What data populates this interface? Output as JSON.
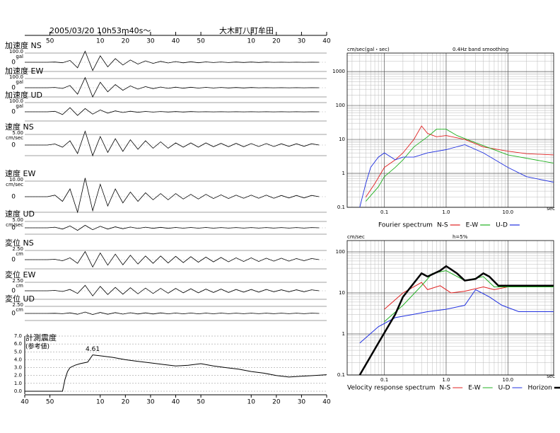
{
  "header": {
    "datetime": "2005/03/20  10h53m40s～",
    "station": "大木町八町牟田"
  },
  "chart_data": [
    {
      "type": "waveform",
      "xlim": [
        0,
        120
      ],
      "xticks": [
        {
          "value": 10,
          "label": "50"
        },
        {
          "value": 30,
          "label": "10"
        },
        {
          "value": 40,
          "label": "20"
        },
        {
          "value": 50,
          "label": "30"
        },
        {
          "value": 60,
          "label": "40"
        },
        {
          "value": 70,
          "label": "50"
        },
        {
          "value": 90,
          "label": "10"
        },
        {
          "value": 100,
          "label": "20"
        },
        {
          "value": 110,
          "label": "30"
        },
        {
          "value": 120,
          "label": "40"
        }
      ],
      "x": [
        0,
        3,
        6,
        9,
        12,
        15,
        18,
        21,
        24,
        27,
        30,
        33,
        36,
        39,
        42,
        45,
        48,
        51,
        54,
        57,
        60,
        63,
        66,
        69,
        72,
        75,
        78,
        81,
        84,
        87,
        90,
        93,
        96,
        99,
        102,
        105,
        108,
        111,
        114,
        117
      ],
      "series": [
        {
          "name": "加速度 NS",
          "unit": "gal",
          "color": "#000",
          "yticks": [
            {
              "value": 100,
              "label": "100.0"
            },
            0
          ],
          "values": [
            0,
            0,
            0,
            0,
            2,
            -5,
            20,
            -60,
            120,
            -90,
            70,
            -50,
            40,
            -30,
            25,
            -20,
            15,
            -12,
            10,
            -8,
            8,
            -6,
            5,
            -5,
            4,
            -3,
            3,
            -3,
            2,
            -2,
            2,
            -2,
            2,
            -1,
            1,
            -1,
            1,
            -1,
            1,
            0
          ]
        },
        {
          "name": "加速度 EW",
          "unit": "gal",
          "color": "#000",
          "yticks": [
            {
              "value": 100,
              "label": "100.0"
            },
            0
          ],
          "values": [
            0,
            0,
            0,
            0,
            3,
            -8,
            25,
            -70,
            110,
            -100,
            60,
            -45,
            35,
            -28,
            20,
            -15,
            12,
            -10,
            8,
            -7,
            6,
            -5,
            5,
            -4,
            4,
            -3,
            3,
            -2,
            2,
            -2,
            2,
            -1,
            1,
            -1,
            1,
            -1,
            1,
            -1,
            1,
            0
          ]
        },
        {
          "name": "加速度 UD",
          "unit": "gal",
          "color": "#000",
          "yticks": [
            {
              "value": 100,
              "label": "100.0"
            },
            0
          ],
          "values": [
            0,
            0,
            0,
            0,
            5,
            -30,
            45,
            -40,
            35,
            -25,
            20,
            -15,
            10,
            -8,
            6,
            -5,
            4,
            -3,
            3,
            -2,
            2,
            -2,
            2,
            -1,
            1,
            -1,
            1,
            -1,
            1,
            -1,
            1,
            -1,
            1,
            -1,
            1,
            -1,
            1,
            -1,
            1,
            0
          ]
        },
        {
          "name": "速度 NS",
          "unit": "cm/sec",
          "color": "#000",
          "yticks": [
            {
              "value": 5,
              "label": "5.00"
            },
            0
          ],
          "values": [
            0,
            0,
            0,
            0,
            0.5,
            -1,
            2,
            -4,
            6.5,
            -5,
            4,
            -3.5,
            3,
            -3,
            2.5,
            -2,
            2,
            -1.5,
            1.5,
            -1.5,
            1,
            -1,
            1,
            -1,
            1,
            -0.8,
            0.8,
            -0.8,
            0.8,
            -0.8,
            0.7,
            -0.7,
            0.7,
            -0.7,
            0.6,
            -0.6,
            0.6,
            -0.6,
            0.6,
            0
          ]
        },
        {
          "name": "速度 EW",
          "unit": "cm/sec",
          "color": "#000",
          "yticks": [
            {
              "value": 10,
              "label": "10.00"
            },
            0
          ],
          "values": [
            0,
            0,
            0,
            0,
            1,
            -3,
            5,
            -10,
            12,
            -9,
            8,
            -6,
            5,
            -4,
            3,
            -3,
            2.5,
            -2,
            2,
            -2,
            2,
            -1.5,
            1.5,
            -1.5,
            1.5,
            -1.2,
            1.2,
            -1.2,
            1,
            -1,
            1,
            -1,
            1,
            -1,
            0.8,
            -0.8,
            0.8,
            -0.8,
            0.8,
            0
          ]
        },
        {
          "name": "速度 UD",
          "unit": "cm/sec",
          "color": "#000",
          "yticks": [
            {
              "value": 5,
              "label": "5.00"
            },
            0
          ],
          "values": [
            0,
            0,
            0,
            0,
            0.5,
            -1,
            1.5,
            -2,
            2,
            -1.5,
            1.2,
            -1,
            0.8,
            -0.7,
            0.6,
            -0.5,
            0.5,
            -0.4,
            0.4,
            -0.4,
            0.3,
            -0.3,
            0.3,
            -0.3,
            0.3,
            -0.3,
            0.2,
            -0.2,
            0.2,
            -0.2,
            0.2,
            -0.2,
            0.2,
            -0.2,
            0.2,
            -0.2,
            0.2,
            -0.2,
            0.2,
            0
          ]
        },
        {
          "name": "変位 NS",
          "unit": "cm",
          "color": "#000",
          "yticks": [
            {
              "value": 2.5,
              "label": "2.50"
            },
            0
          ],
          "values": [
            0,
            0,
            0,
            0,
            0.1,
            -0.3,
            0.5,
            -1,
            2.2,
            -2,
            1.8,
            -1.5,
            1.5,
            -1.4,
            1.2,
            -1.2,
            1,
            -1,
            1,
            -0.9,
            0.9,
            -0.8,
            0.8,
            -0.7,
            0.7,
            -0.6,
            0.6,
            -0.6,
            0.5,
            -0.5,
            0.5,
            -0.5,
            0.4,
            -0.4,
            0.4,
            -0.4,
            0.3,
            -0.3,
            0.3,
            0
          ]
        },
        {
          "name": "変位 EW",
          "unit": "cm",
          "color": "#000",
          "yticks": [
            {
              "value": 2.5,
              "label": "2.50"
            },
            0
          ],
          "values": [
            0,
            0,
            0,
            0,
            0.1,
            -0.2,
            0.4,
            -0.8,
            1.6,
            -1.5,
            1.3,
            -1.1,
            1,
            -1,
            0.9,
            -0.9,
            0.8,
            -0.8,
            0.7,
            -0.7,
            0.7,
            -0.6,
            0.6,
            -0.6,
            0.5,
            -0.5,
            0.5,
            -0.5,
            0.4,
            -0.4,
            0.4,
            -0.4,
            0.4,
            -0.3,
            0.3,
            -0.3,
            0.3,
            -0.3,
            0.3,
            0
          ]
        },
        {
          "name": "変位 UD",
          "unit": "cm",
          "color": "#000",
          "yticks": [
            {
              "value": 2.5,
              "label": "2.50"
            },
            0
          ],
          "values": [
            0,
            0,
            0,
            0,
            0.05,
            -0.1,
            0.2,
            -0.3,
            0.5,
            -0.4,
            0.35,
            -0.3,
            0.3,
            -0.25,
            0.25,
            -0.2,
            0.2,
            -0.2,
            0.2,
            -0.15,
            0.15,
            -0.15,
            0.15,
            -0.15,
            0.12,
            -0.12,
            0.12,
            -0.1,
            0.1,
            -0.1,
            0.1,
            -0.1,
            0.1,
            -0.1,
            0.1,
            -0.1,
            0.1,
            -0.1,
            0.1,
            0
          ]
        }
      ]
    },
    {
      "type": "intensity",
      "title": "計測震度",
      "subtitle": "(参考値)",
      "xlim": [
        0,
        120
      ],
      "xticks": [
        {
          "value": 0,
          "label": "40"
        },
        {
          "value": 10,
          "label": "50"
        },
        {
          "value": 30,
          "label": "10"
        },
        {
          "value": 40,
          "label": "20"
        },
        {
          "value": 50,
          "label": "30"
        },
        {
          "value": 60,
          "label": "40"
        },
        {
          "value": 70,
          "label": "50"
        },
        {
          "value": 90,
          "label": "10"
        },
        {
          "value": 100,
          "label": "20"
        },
        {
          "value": 110,
          "label": "30"
        },
        {
          "value": 120,
          "label": "40"
        }
      ],
      "ylim": [
        0,
        7
      ],
      "yticks": [
        {
          "value": 0,
          "label": "0.0"
        },
        {
          "value": 1,
          "label": "1.0"
        },
        {
          "value": 2,
          "label": "2.0"
        },
        {
          "value": 3,
          "label": "3.0"
        },
        {
          "value": 4,
          "label": "4.0"
        },
        {
          "value": 5,
          "label": "5.0"
        },
        {
          "value": 6,
          "label": "6.0"
        },
        {
          "value": 7,
          "label": "7.0"
        }
      ],
      "grid": true,
      "color": "#000",
      "x": [
        0,
        15,
        16,
        17,
        18,
        20,
        22,
        25,
        27,
        30,
        35,
        40,
        45,
        50,
        55,
        60,
        65,
        70,
        75,
        80,
        85,
        90,
        95,
        100,
        105,
        110,
        115,
        120
      ],
      "values": [
        0,
        0,
        1.5,
        2.5,
        3.0,
        3.3,
        3.5,
        3.7,
        4.61,
        4.5,
        4.3,
        4.0,
        3.8,
        3.6,
        3.4,
        3.2,
        3.3,
        3.5,
        3.2,
        3.0,
        2.8,
        2.5,
        2.3,
        2.0,
        1.8,
        1.9,
        2.0,
        2.1
      ],
      "annotation": {
        "label": "4.61",
        "x": 27,
        "value": 4.61
      }
    },
    {
      "type": "spectrum",
      "title": "Fourier spectrum",
      "y_label": "cm/sec(gal・sec)",
      "subtitle": "0.4Hz band smoothing",
      "x_label": "sec",
      "log_x": true,
      "log_y": true,
      "grid": true,
      "xlim": [
        0.025,
        55
      ],
      "xticks": [
        0.1,
        {
          "value": 1,
          "label": "1.0"
        },
        {
          "value": 10,
          "label": "10.0"
        }
      ],
      "ylim": [
        0.1,
        3500
      ],
      "yticks": [
        0.1,
        1,
        10,
        100,
        1000
      ],
      "series": [
        {
          "name": "N-S",
          "color": "#e02020",
          "x": [
            0.05,
            0.07,
            0.1,
            0.15,
            0.2,
            0.3,
            0.4,
            0.5,
            0.7,
            1,
            2,
            4,
            10,
            20,
            55
          ],
          "values": [
            0.2,
            0.5,
            1.5,
            2.5,
            4,
            10,
            25,
            15,
            12,
            13,
            10,
            6,
            4.5,
            3.8,
            3.5
          ]
        },
        {
          "name": "E-W",
          "color": "#20b020",
          "x": [
            0.05,
            0.08,
            0.1,
            0.15,
            0.2,
            0.3,
            0.5,
            0.7,
            1,
            1.5,
            3,
            10,
            55
          ],
          "values": [
            0.15,
            0.4,
            0.8,
            1.5,
            2.5,
            6,
            12,
            20,
            20,
            13,
            8,
            3.5,
            2
          ]
        },
        {
          "name": "U-D",
          "color": "#2030e0",
          "x": [
            0.04,
            0.05,
            0.06,
            0.08,
            0.1,
            0.15,
            0.2,
            0.3,
            0.5,
            1,
            2,
            4,
            10,
            20,
            55
          ],
          "values": [
            0.1,
            0.5,
            1.5,
            3,
            4,
            2.5,
            3,
            3,
            4,
            5,
            7,
            4,
            1.5,
            0.8,
            0.55
          ]
        }
      ]
    },
    {
      "type": "spectrum",
      "title": "Velocity response spectrum",
      "y_label": "cm/sec",
      "subtitle": "h=5%",
      "x_label": "sec",
      "log_x": true,
      "log_y": true,
      "grid": true,
      "xlim": [
        0.025,
        55
      ],
      "xticks": [
        0.1,
        {
          "value": 1,
          "label": "1.0"
        },
        {
          "value": 10,
          "label": "10.0"
        }
      ],
      "ylim": [
        0.1,
        189
      ],
      "yticks": [
        0.1,
        1,
        10,
        100
      ],
      "series": [
        {
          "name": "N-S",
          "color": "#e02020",
          "width": 1,
          "x": [
            0.1,
            0.2,
            0.4,
            0.5,
            0.8,
            1.2,
            2,
            4,
            6,
            10,
            55
          ],
          "values": [
            4,
            10,
            18,
            12,
            15,
            10,
            11,
            14,
            12,
            14,
            14
          ]
        },
        {
          "name": "E-W",
          "color": "#20b020",
          "width": 1,
          "x": [
            0.1,
            0.2,
            0.4,
            0.6,
            1,
            2,
            4,
            6,
            55
          ],
          "values": [
            2,
            5,
            15,
            30,
            35,
            20,
            25,
            14,
            14
          ]
        },
        {
          "name": "U-D",
          "color": "#2030e0",
          "width": 1,
          "x": [
            0.04,
            0.08,
            0.15,
            0.3,
            0.5,
            1,
            2,
            3,
            5,
            8,
            15,
            55
          ],
          "values": [
            0.6,
            1.5,
            2.5,
            3,
            3.5,
            4,
            5,
            12,
            8,
            5,
            3.5,
            3.5
          ]
        },
        {
          "name": "Horizon",
          "color": "#000",
          "width": 2.5,
          "x": [
            0.04,
            0.08,
            0.15,
            0.2,
            0.4,
            0.5,
            0.8,
            1,
            1.5,
            2,
            3,
            4,
            5,
            7,
            55
          ],
          "values": [
            0.1,
            0.6,
            3,
            8,
            30,
            25,
            35,
            45,
            30,
            20,
            22,
            30,
            25,
            15,
            15
          ]
        }
      ]
    }
  ]
}
